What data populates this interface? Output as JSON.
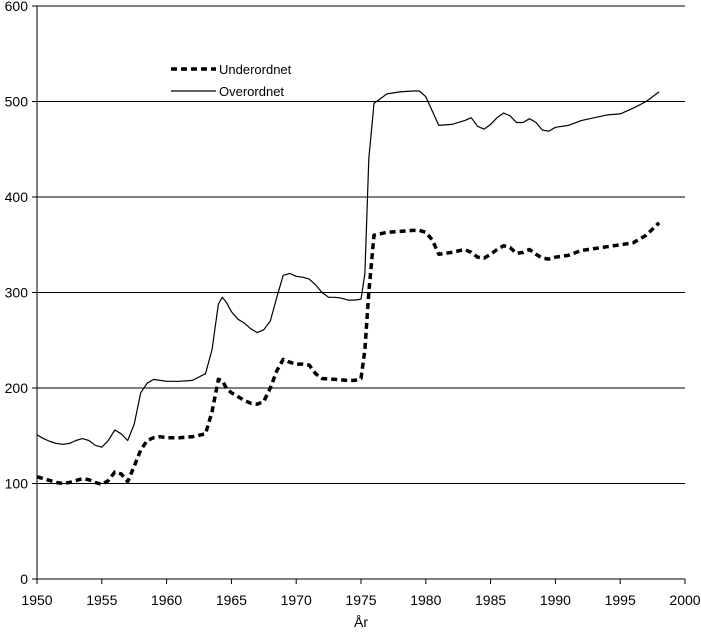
{
  "chart_data": {
    "type": "line",
    "title": "",
    "xlabel": "År",
    "ylabel": "",
    "xlim": [
      1950,
      2000
    ],
    "ylim": [
      0,
      600
    ],
    "x_ticks": [
      "1950",
      "1955",
      "1960",
      "1965",
      "1970",
      "1975",
      "1980",
      "1985",
      "1990",
      "1995",
      "2000"
    ],
    "y_ticks": [
      "0",
      "100",
      "200",
      "300",
      "400",
      "500",
      "600"
    ],
    "grid": "horizontal",
    "legend_position": "top-left",
    "series": [
      {
        "name": "Underordnet",
        "style": "dashed",
        "color": "#000000",
        "x": [
          1950,
          1950.5,
          1951,
          1951.5,
          1952,
          1952.5,
          1953,
          1953.5,
          1954,
          1954.5,
          1955,
          1955.5,
          1956,
          1956.5,
          1957,
          1957.5,
          1958,
          1958.5,
          1959,
          1959.5,
          1960,
          1961,
          1962,
          1963,
          1963.5,
          1964,
          1964.3,
          1964.6,
          1965,
          1965.5,
          1966,
          1966.5,
          1967,
          1967.5,
          1968,
          1968.5,
          1969,
          1969.5,
          1970,
          1970.5,
          1971,
          1971.5,
          1972,
          1973,
          1974,
          1974.5,
          1975,
          1975.3,
          1975.6,
          1976,
          1977,
          1978,
          1979,
          1979.5,
          1980,
          1980.5,
          1981,
          1982,
          1983,
          1983.5,
          1984,
          1984.5,
          1985,
          1985.5,
          1986,
          1986.5,
          1987,
          1987.5,
          1988,
          1988.5,
          1989,
          1989.5,
          1990,
          1991,
          1992,
          1993,
          1994,
          1995,
          1996,
          1997,
          1998
        ],
        "values": [
          107,
          105,
          103,
          101,
          100,
          101,
          103,
          105,
          104,
          101,
          99,
          103,
          112,
          110,
          102,
          118,
          135,
          145,
          148,
          149,
          148,
          148,
          149,
          152,
          175,
          209,
          208,
          200,
          195,
          191,
          187,
          184,
          183,
          186,
          200,
          218,
          230,
          227,
          225,
          225,
          224,
          215,
          210,
          209,
          208,
          208,
          210,
          240,
          300,
          360,
          363,
          364,
          365,
          365,
          363,
          355,
          340,
          342,
          345,
          342,
          337,
          336,
          340,
          345,
          349,
          347,
          341,
          342,
          345,
          340,
          336,
          335,
          337,
          339,
          344,
          346,
          348,
          350,
          352,
          360,
          373
        ]
      },
      {
        "name": "Overordnet",
        "style": "solid",
        "color": "#000000",
        "x": [
          1950,
          1950.5,
          1951,
          1951.5,
          1952,
          1952.5,
          1953,
          1953.5,
          1954,
          1954.5,
          1955,
          1955.5,
          1956,
          1956.5,
          1957,
          1957.5,
          1958,
          1958.5,
          1959,
          1959.5,
          1960,
          1961,
          1962,
          1963,
          1963.5,
          1964,
          1964.3,
          1964.6,
          1965,
          1965.5,
          1966,
          1966.5,
          1967,
          1967.5,
          1968,
          1968.5,
          1969,
          1969.5,
          1970,
          1970.5,
          1971,
          1971.5,
          1972,
          1972.5,
          1973,
          1973.5,
          1974,
          1974.5,
          1975,
          1975.3,
          1975.6,
          1976,
          1977,
          1978,
          1979,
          1979.5,
          1980,
          1980.5,
          1981,
          1982,
          1983,
          1983.5,
          1984,
          1984.5,
          1985,
          1985.5,
          1986,
          1986.5,
          1987,
          1987.5,
          1988,
          1988.5,
          1989,
          1989.5,
          1990,
          1991,
          1992,
          1993,
          1994,
          1995,
          1996,
          1997,
          1998
        ],
        "values": [
          151,
          147,
          144,
          142,
          141,
          142,
          145,
          147,
          145,
          140,
          138,
          145,
          156,
          152,
          145,
          162,
          195,
          205,
          209,
          208,
          207,
          207,
          208,
          215,
          240,
          288,
          295,
          290,
          280,
          272,
          268,
          262,
          258,
          261,
          270,
          295,
          318,
          320,
          317,
          316,
          314,
          308,
          300,
          295,
          295,
          294,
          292,
          292,
          293,
          320,
          440,
          498,
          508,
          510,
          511,
          511,
          505,
          490,
          475,
          476,
          480,
          483,
          474,
          471,
          476,
          483,
          488,
          485,
          478,
          478,
          482,
          478,
          470,
          469,
          473,
          475,
          480,
          483,
          486,
          487,
          493,
          500,
          510
        ]
      }
    ]
  }
}
